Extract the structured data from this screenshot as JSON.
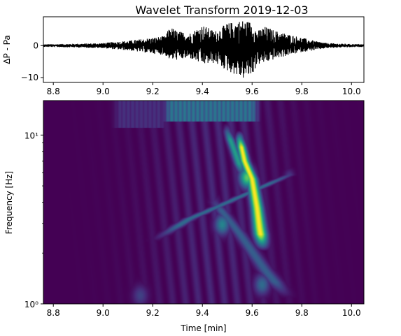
{
  "chart_data": [
    {
      "type": "line",
      "title": "Wavelet Transform 2019-12-03",
      "ylabel": "ΔP - Pa",
      "xlim": [
        8.76,
        10.05
      ],
      "ylim": [
        -11.5,
        9
      ],
      "xticks": [
        8.8,
        9.0,
        9.2,
        9.4,
        9.6,
        9.8,
        10.0
      ],
      "xtick_labels": [
        "8.8",
        "9.0",
        "9.2",
        "9.4",
        "9.6",
        "9.8",
        "10.0"
      ],
      "yticks": [
        0,
        -10
      ],
      "ytick_labels": [
        "0",
        "−10"
      ],
      "series_color": "#000000",
      "envelope": {
        "x": [
          8.76,
          8.9,
          9.0,
          9.05,
          9.1,
          9.15,
          9.2,
          9.25,
          9.27,
          9.3,
          9.35,
          9.4,
          9.45,
          9.5,
          9.53,
          9.56,
          9.6,
          9.62,
          9.65,
          9.7,
          9.75,
          9.8,
          9.85,
          9.9,
          10.0,
          10.05
        ],
        "upper": [
          0.4,
          0.6,
          0.8,
          1.2,
          1.5,
          2.0,
          2.5,
          3.0,
          6.0,
          4.5,
          4.0,
          6.5,
          4.5,
          7.0,
          7.5,
          8.0,
          7.5,
          4.5,
          6.0,
          4.5,
          3.5,
          2.5,
          1.5,
          0.8,
          0.5,
          0.4
        ],
        "lower": [
          -0.4,
          -0.6,
          -0.8,
          -1.2,
          -1.5,
          -2.0,
          -2.5,
          -3.0,
          -4.5,
          -4.5,
          -4.0,
          -6.0,
          -5.5,
          -8.0,
          -9.0,
          -10.5,
          -9.5,
          -6.0,
          -5.5,
          -4.0,
          -3.0,
          -2.0,
          -1.5,
          -0.8,
          -0.5,
          -0.4
        ]
      }
    },
    {
      "type": "heatmap",
      "xlabel": "Time  [min]",
      "ylabel": "Frequency [Hz]",
      "xlim": [
        8.76,
        10.05
      ],
      "ylim": [
        1,
        16
      ],
      "yscale": "log",
      "xticks": [
        8.8,
        9.0,
        9.2,
        9.4,
        9.6,
        9.8,
        10.0
      ],
      "xtick_labels": [
        "8.8",
        "9.0",
        "9.2",
        "9.4",
        "9.6",
        "9.8",
        "10.0"
      ],
      "yticks": [
        1,
        10
      ],
      "ytick_labels": [
        "10⁰",
        "10¹"
      ],
      "colormap": "viridis",
      "colormap_colors": [
        "#440154",
        "#472a7a",
        "#3b528b",
        "#2c728e",
        "#21918c",
        "#28ae80",
        "#5ec962",
        "#addc30",
        "#fde725"
      ],
      "features": [
        {
          "kind": "ridge",
          "x": [
            9.55,
            9.57,
            9.6,
            9.62,
            9.63,
            9.64
          ],
          "y": [
            9.5,
            7.0,
            5.5,
            3.7,
            2.8,
            2.3
          ],
          "peak": 1.0
        },
        {
          "kind": "ridge",
          "x": [
            9.5,
            9.53,
            9.56
          ],
          "y": [
            10.5,
            8.0,
            6.0
          ],
          "peak": 0.55
        },
        {
          "kind": "ridge",
          "x": [
            9.25,
            9.35,
            9.45,
            9.55,
            9.65,
            9.75
          ],
          "y": [
            2.6,
            3.2,
            3.7,
            4.3,
            5.0,
            5.8
          ],
          "peak": 0.35
        },
        {
          "kind": "ridge",
          "x": [
            9.45,
            9.55,
            9.65,
            9.72
          ],
          "y": [
            4.0,
            2.6,
            1.6,
            1.2
          ],
          "peak": 0.3
        },
        {
          "kind": "blob",
          "x": 9.48,
          "y": 2.95,
          "peak": 0.45
        },
        {
          "kind": "blob",
          "x": 9.58,
          "y": 5.6,
          "peak": 0.75
        },
        {
          "kind": "blob",
          "x": 9.64,
          "y": 1.3,
          "peak": 0.35
        },
        {
          "kind": "blob",
          "x": 9.15,
          "y": 1.12,
          "peak": 0.2
        },
        {
          "kind": "band",
          "x": [
            9.25,
            9.62
          ],
          "y": [
            12,
            16
          ],
          "peak": 0.4
        },
        {
          "kind": "band",
          "x": [
            9.05,
            9.25
          ],
          "y": [
            11,
            16
          ],
          "peak": 0.15
        }
      ]
    }
  ]
}
